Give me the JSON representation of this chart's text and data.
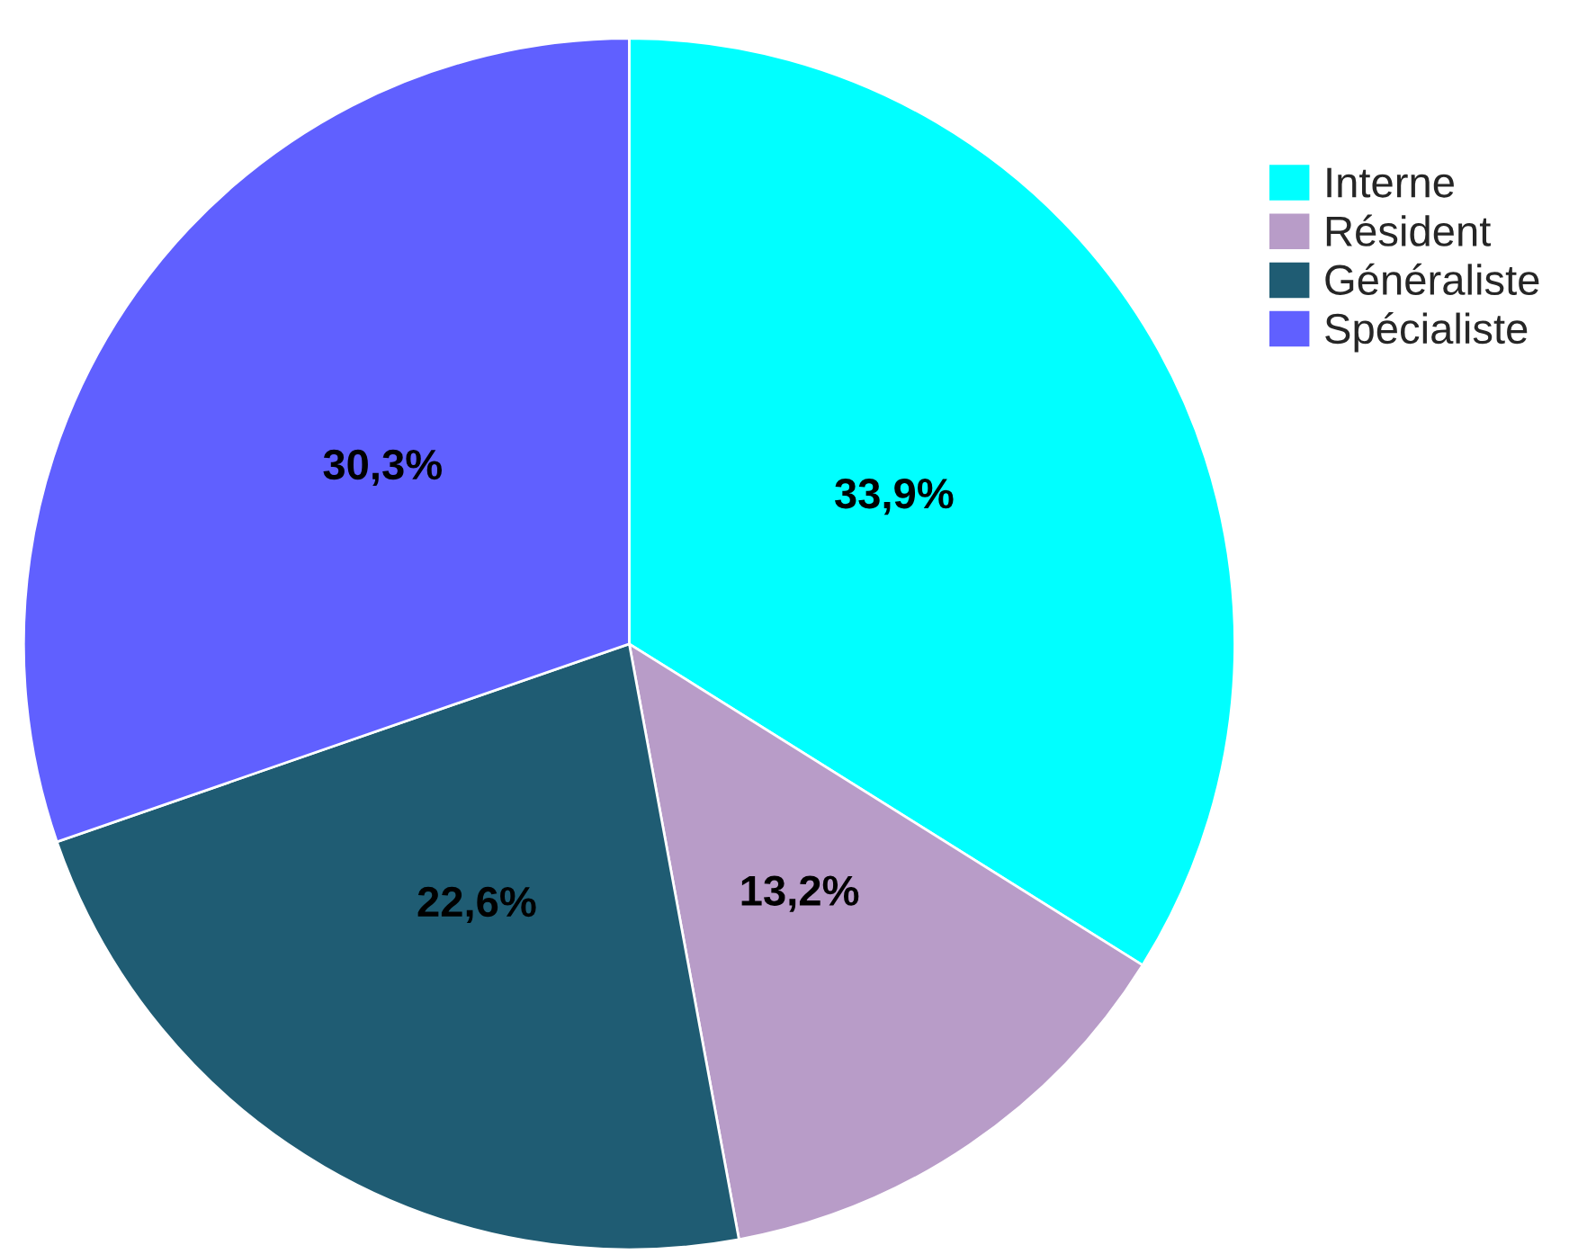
{
  "chart_data": {
    "type": "pie",
    "categories": [
      "Interne",
      "Résident",
      "Généraliste",
      "Spécialiste"
    ],
    "values": [
      33.9,
      13.2,
      22.6,
      30.3
    ],
    "value_labels": [
      "33,9%",
      "13,2%",
      "22,6%",
      "30,3%"
    ],
    "colors": [
      "#00ffff",
      "#b89cc8",
      "#1f5c73",
      "#6060ff"
    ],
    "legend": "top right"
  }
}
